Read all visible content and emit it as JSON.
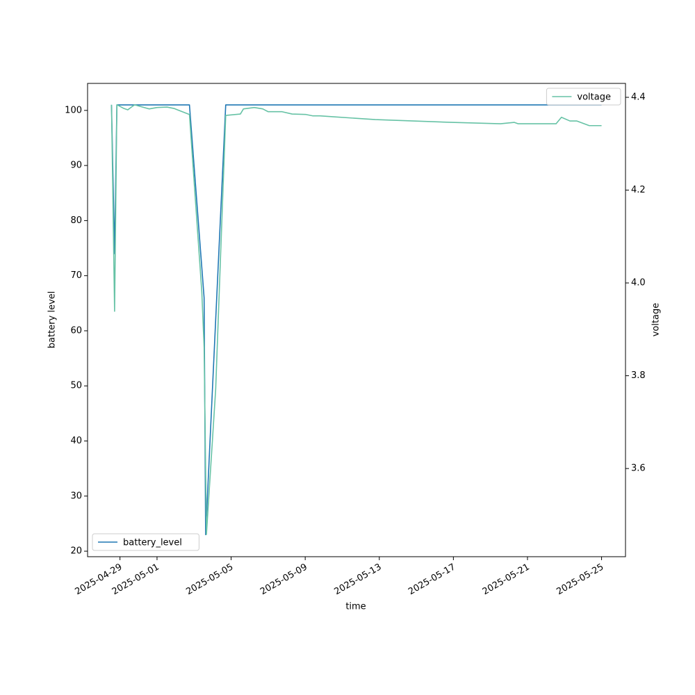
{
  "chart_data": {
    "type": "line",
    "xlabel": "time",
    "ylabel": "battery level",
    "y2label": "voltage",
    "xlim": [
      "2025-04-27T06:00",
      "2025-05-26T07:00"
    ],
    "xticks": [
      "2025-04-29",
      "2025-05-01",
      "2025-05-05",
      "2025-05-09",
      "2025-05-13",
      "2025-05-17",
      "2025-05-21",
      "2025-05-25"
    ],
    "ylim": [
      19,
      104.9
    ],
    "yticks": [
      20,
      30,
      40,
      50,
      60,
      70,
      80,
      90,
      100
    ],
    "y2lim": [
      3.41,
      4.43
    ],
    "y2ticks": [
      3.6,
      3.8,
      4.0,
      4.2,
      4.4
    ],
    "series": [
      {
        "name": "battery_level",
        "color": "#1f77b4",
        "legend": "lower left",
        "x": [
          "2025-04-28T13:00",
          "2025-04-28T17:00",
          "2025-04-28T20:00",
          "2025-05-02T18:00",
          "2025-05-03T13:00",
          "2025-05-03T15:00",
          "2025-05-04T17:00",
          "2025-05-25T00:00"
        ],
        "values": [
          101,
          74,
          101,
          101,
          66,
          23,
          101,
          101
        ]
      },
      {
        "name": "voltage",
        "color": "#66c2a5",
        "axis": "y2",
        "legend": "upper right",
        "x": [
          "2025-04-28T13:00",
          "2025-04-28T17:00",
          "2025-04-28T20:00",
          "2025-04-29T05:00",
          "2025-04-29T10:00",
          "2025-04-29T14:00",
          "2025-04-29T19:00",
          "2025-04-30T01:00",
          "2025-04-30T14:00",
          "2025-05-01T00:00",
          "2025-05-01T13:00",
          "2025-05-01T22:00",
          "2025-05-02T18:00",
          "2025-05-03T10:00",
          "2025-05-03T13:00",
          "2025-05-03T16:00",
          "2025-05-04T04:00",
          "2025-05-04T17:00",
          "2025-05-05T12:00",
          "2025-05-05T16:00",
          "2025-05-06T06:00",
          "2025-05-06T17:00",
          "2025-05-07T00:00",
          "2025-05-07T09:00",
          "2025-05-07T18:00",
          "2025-05-08T07:00",
          "2025-05-09T01:00",
          "2025-05-09T10:00",
          "2025-05-09T19:00",
          "2025-05-10T13:00",
          "2025-05-12T19:00",
          "2025-05-16T22:00",
          "2025-05-19T13:00",
          "2025-05-20T07:00",
          "2025-05-20T12:00",
          "2025-05-22T13:00",
          "2025-05-22T20:00",
          "2025-05-23T07:00",
          "2025-05-23T16:00",
          "2025-05-24T08:00",
          "2025-05-25T00:00"
        ],
        "values": [
          4.384,
          3.939,
          4.384,
          4.376,
          4.373,
          4.378,
          4.384,
          4.381,
          4.375,
          4.378,
          4.379,
          4.376,
          4.363,
          3.981,
          3.861,
          3.458,
          3.771,
          4.361,
          4.364,
          4.375,
          4.378,
          4.375,
          4.369,
          4.369,
          4.369,
          4.364,
          4.363,
          4.36,
          4.36,
          4.358,
          4.352,
          4.346,
          4.343,
          4.346,
          4.343,
          4.343,
          4.357,
          4.349,
          4.349,
          4.339,
          4.339
        ]
      }
    ]
  }
}
